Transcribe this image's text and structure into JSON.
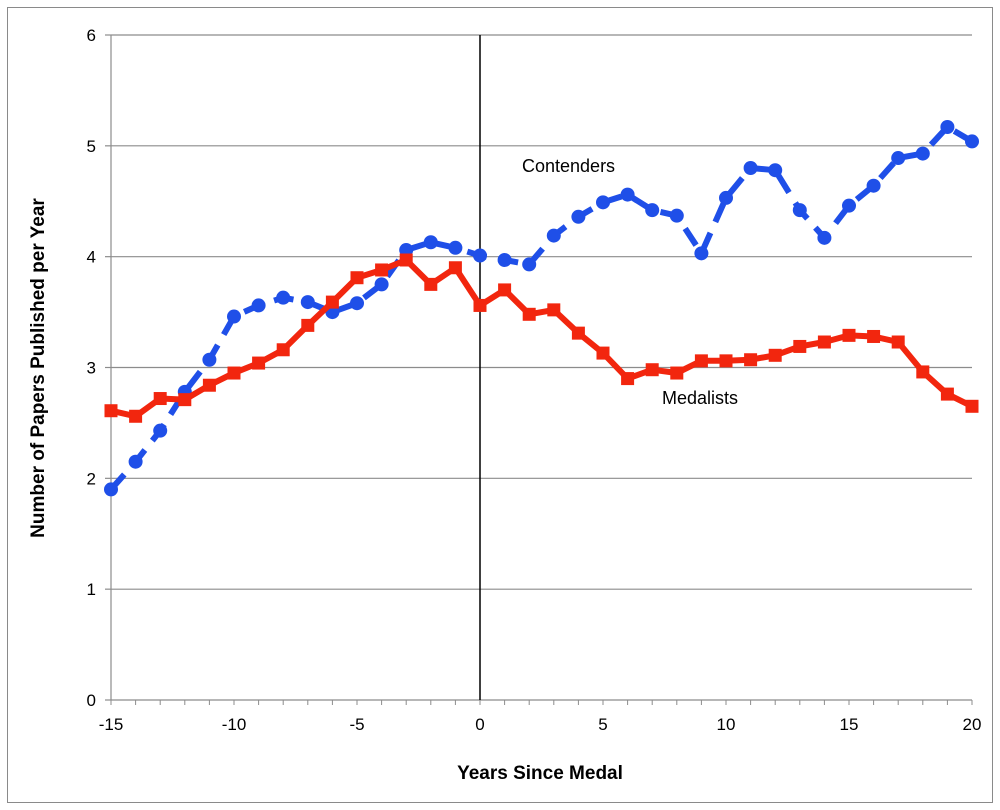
{
  "chart_data": {
    "type": "line",
    "title": "",
    "xlabel": "Years Since Medal",
    "ylabel": "Number of Papers Published per Year",
    "xlim": [
      -15,
      20
    ],
    "ylim": [
      0,
      6
    ],
    "x_ticks": [
      -15,
      -10,
      -5,
      0,
      5,
      10,
      15,
      20
    ],
    "y_ticks": [
      0,
      1,
      2,
      3,
      4,
      5,
      6
    ],
    "grid": "horizontal",
    "reference_line_x": 0,
    "x": [
      -15,
      -14,
      -13,
      -12,
      -11,
      -10,
      -9,
      -8,
      -7,
      -6,
      -5,
      -4,
      -3,
      -2,
      -1,
      0,
      1,
      2,
      3,
      4,
      5,
      6,
      7,
      8,
      9,
      10,
      11,
      12,
      13,
      14,
      15,
      16,
      17,
      18,
      19,
      20
    ],
    "series": [
      {
        "name": "Contenders",
        "color": "#1f4fe8",
        "style": "dashed",
        "marker": "circle",
        "values": [
          1.9,
          2.15,
          2.43,
          2.78,
          3.07,
          3.46,
          3.56,
          3.63,
          3.59,
          3.5,
          3.58,
          3.75,
          4.06,
          4.13,
          4.08,
          4.01,
          3.97,
          3.93,
          4.19,
          4.36,
          4.49,
          4.56,
          4.42,
          4.37,
          4.03,
          4.53,
          4.8,
          4.78,
          4.42,
          4.17,
          4.46,
          4.64,
          4.89,
          4.93,
          5.17,
          5.04
        ]
      },
      {
        "name": "Medalists",
        "color": "#f2260e",
        "style": "solid",
        "marker": "square",
        "values": [
          2.61,
          2.56,
          2.72,
          2.71,
          2.84,
          2.95,
          3.04,
          3.16,
          3.38,
          3.59,
          3.81,
          3.88,
          3.97,
          3.75,
          3.9,
          3.56,
          3.7,
          3.48,
          3.52,
          3.31,
          3.13,
          2.9,
          2.98,
          2.95,
          3.06,
          3.06,
          3.07,
          3.11,
          3.19,
          3.23,
          3.29,
          3.28,
          3.23,
          2.96,
          2.76,
          2.65
        ]
      }
    ],
    "annotations": {
      "contenders": "Contenders",
      "medalists": "Medalists"
    }
  }
}
